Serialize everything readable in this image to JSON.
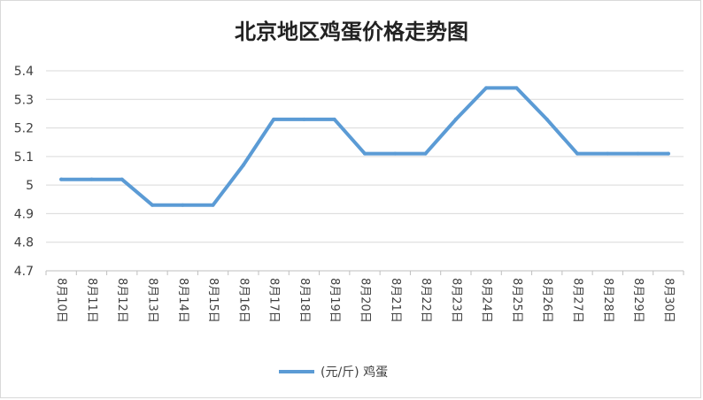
{
  "chart_data": {
    "type": "line",
    "title": "北京地区鸡蛋价格走势图",
    "categories": [
      "8月10日",
      "8月11日",
      "8月12日",
      "8月13日",
      "8月14日",
      "8月15日",
      "8月16日",
      "8月17日",
      "8月18日",
      "8月19日",
      "8月20日",
      "8月21日",
      "8月22日",
      "8月23日",
      "8月24日",
      "8月25日",
      "8月26日",
      "8月27日",
      "8月28日",
      "8月29日",
      "8月30日"
    ],
    "series": [
      {
        "name": "(元/斤) 鸡蛋",
        "color": "#5b9bd5",
        "values": [
          5.02,
          5.02,
          5.02,
          4.93,
          4.93,
          4.93,
          5.07,
          5.23,
          5.23,
          5.23,
          5.11,
          5.11,
          5.11,
          5.23,
          5.34,
          5.34,
          5.23,
          5.11,
          5.11,
          5.11,
          5.11
        ]
      }
    ],
    "yticks": [
      "4.7",
      "4.8",
      "4.9",
      "5",
      "5.1",
      "5.2",
      "5.3",
      "5.4"
    ],
    "ylim": [
      4.7,
      5.4
    ],
    "grid": true,
    "legend_position": "bottom",
    "xlabel": "",
    "ylabel": ""
  }
}
